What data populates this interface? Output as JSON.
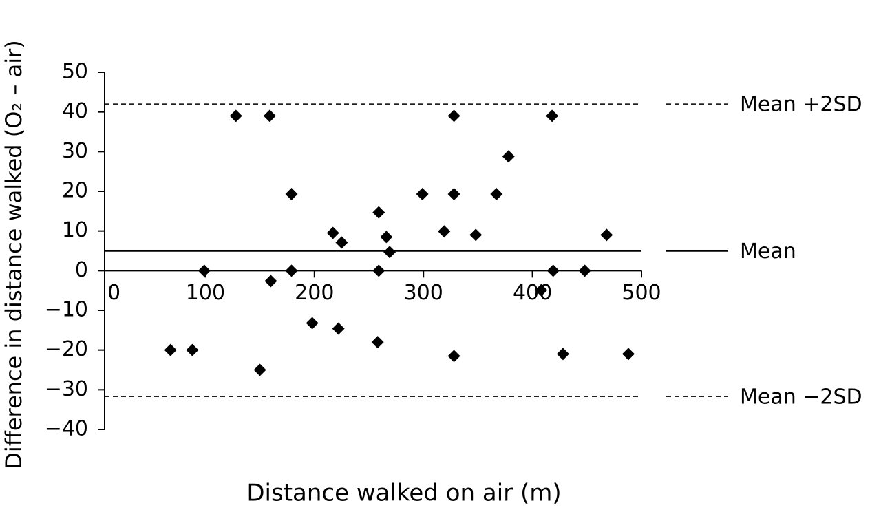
{
  "chart_data": {
    "type": "scatter",
    "x_label": "Distance walked on air (m)",
    "y_label": "Difference in distance walked (O₂ – air)",
    "color": "#000000",
    "x": [
      68,
      88,
      99,
      128,
      150,
      159,
      160,
      179,
      179,
      198,
      217,
      222,
      225,
      258,
      259,
      259,
      266,
      269,
      299,
      319,
      328,
      328,
      328,
      348,
      367,
      378,
      408,
      418,
      419,
      428,
      448,
      468,
      488
    ],
    "values": [
      -20,
      -20,
      0,
      39,
      -25,
      39,
      -2.6,
      19.3,
      0,
      -13.2,
      9.5,
      -14.6,
      7.1,
      -18,
      14.7,
      0,
      8.5,
      4.7,
      19.3,
      9.9,
      39,
      19.3,
      -21.5,
      9,
      19.3,
      28.8,
      -4.9,
      39,
      0,
      -21,
      0,
      9,
      -21
    ],
    "xlim": [
      0,
      500
    ],
    "xticks": [
      0,
      100,
      200,
      300,
      400,
      500
    ],
    "ylim": [
      -40,
      50
    ],
    "yticks": [
      {
        "value": -40,
        "label": "−40"
      },
      {
        "value": -30,
        "label": "−30"
      },
      {
        "value": -20,
        "label": "−20"
      },
      {
        "value": -10,
        "label": "−10"
      },
      0,
      10,
      20,
      30,
      40,
      50
    ],
    "reference_lines": [
      {
        "name": "Mean +2SD",
        "value": 42,
        "dashed": true
      },
      {
        "name": "Mean",
        "value": 5,
        "dashed": false
      },
      {
        "name": "Mean −2SD",
        "value": -31.7,
        "dashed": true
      }
    ]
  }
}
